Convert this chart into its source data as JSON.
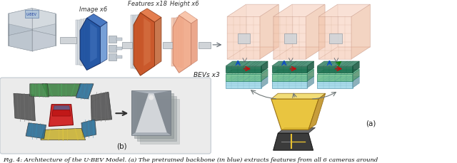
{
  "caption": "Fig. 4: Architecture of the U-BEV Model. (a) The pretrained backbone (in blue) extracts features from all 6 cameras around",
  "bg_color": "#ffffff",
  "label_image": "Image x6",
  "label_features": "Features x18",
  "label_height": "Height x6",
  "label_bevs": "BEVs x3",
  "label_a": "(a)",
  "label_b": "(b)",
  "colors": {
    "blue_dark": "#1a4fa0",
    "blue_mid": "#2860b8",
    "blue_light": "#6090d0",
    "orange_dark": "#c85020",
    "orange_mid": "#e06830",
    "salmon": "#f0a888",
    "salmon_light": "#f8c8b0",
    "teal_dark": "#1a7050",
    "teal_mid": "#2a9060",
    "teal_light": "#70c090",
    "cyan_light": "#a0d8e8",
    "yellow": "#e8c030",
    "yellow_light": "#f0d860",
    "gray_box": "#e0e4e8",
    "gray_dark": "#707880",
    "gray_mid": "#a0a8b0",
    "gray_light": "#c8d0d8",
    "gray_bg": "#ebebeb",
    "white": "#ffffff",
    "road_dark": "#303030",
    "road_line": "#e8c030",
    "arrow_blue": "#1050c0",
    "arrow_red": "#c01010",
    "arrow_green": "#108010"
  }
}
